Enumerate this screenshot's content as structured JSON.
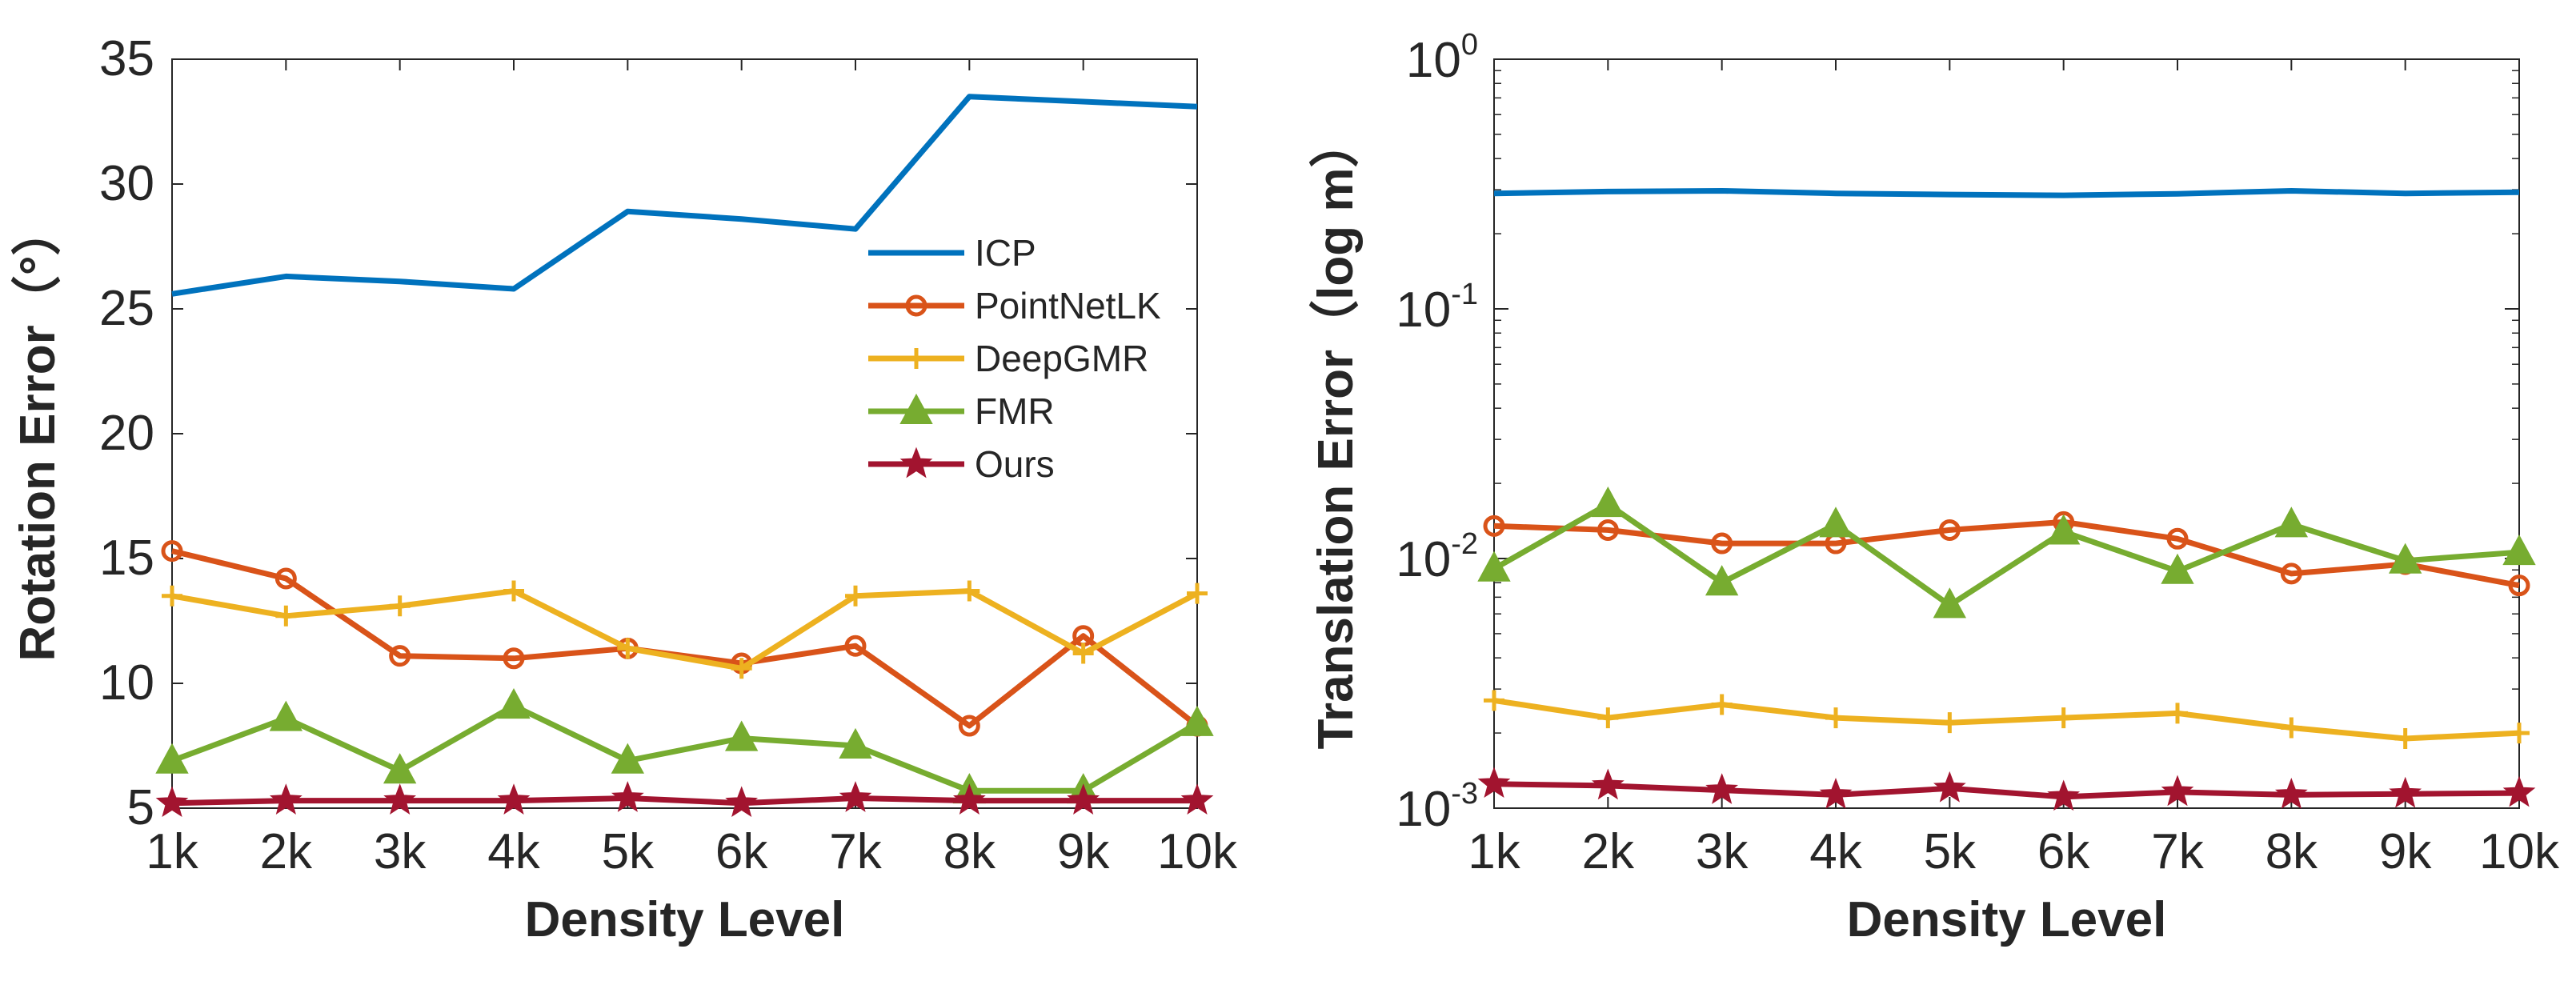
{
  "series_colors": {
    "ICP": "#0072BD",
    "PointNetLK": "#D95319",
    "DeepGMR": "#EDB120",
    "FMR": "#77AC30",
    "Ours": "#A2142F"
  },
  "chart_data": [
    {
      "type": "line",
      "title": "",
      "xlabel": "Density Level",
      "ylabel": "Rotation Error（°）",
      "categories": [
        "1k",
        "2k",
        "3k",
        "4k",
        "5k",
        "6k",
        "7k",
        "8k",
        "9k",
        "10k"
      ],
      "ylim": [
        5,
        35
      ],
      "yticks": [
        "5",
        "10",
        "15",
        "20",
        "25",
        "30",
        "35"
      ],
      "legend_position": "upper-right",
      "series": [
        {
          "name": "ICP",
          "marker": "none",
          "values": [
            25.6,
            26.3,
            26.1,
            25.8,
            28.9,
            28.6,
            28.2,
            33.5,
            33.3,
            33.1
          ]
        },
        {
          "name": "PointNetLK",
          "marker": "circle",
          "values": [
            15.3,
            14.2,
            11.1,
            11.0,
            11.4,
            10.8,
            11.5,
            8.3,
            11.9,
            8.3
          ]
        },
        {
          "name": "DeepGMR",
          "marker": "plus",
          "values": [
            13.5,
            12.7,
            13.1,
            13.7,
            11.4,
            10.6,
            13.5,
            13.7,
            11.2,
            13.6
          ]
        },
        {
          "name": "FMR",
          "marker": "triangle",
          "values": [
            6.9,
            8.6,
            6.5,
            9.1,
            6.9,
            7.8,
            7.5,
            5.7,
            5.7,
            8.4
          ]
        },
        {
          "name": "Ours",
          "marker": "star",
          "values": [
            5.2,
            5.3,
            5.3,
            5.3,
            5.4,
            5.2,
            5.4,
            5.3,
            5.3,
            5.3
          ]
        }
      ]
    },
    {
      "type": "line",
      "title": "",
      "xlabel": "Density Level",
      "ylabel": "Translation Error（log m）",
      "yscale": "log",
      "categories": [
        "1k",
        "2k",
        "3k",
        "4k",
        "5k",
        "6k",
        "7k",
        "8k",
        "9k",
        "10k"
      ],
      "ylim": [
        0.001,
        1
      ],
      "yticks": [
        {
          "base": "10",
          "exp": "-3"
        },
        {
          "base": "10",
          "exp": "-2"
        },
        {
          "base": "10",
          "exp": "-1"
        },
        {
          "base": "10",
          "exp": "0"
        }
      ],
      "series": [
        {
          "name": "ICP",
          "marker": "none",
          "values": [
            0.29,
            0.295,
            0.297,
            0.29,
            0.287,
            0.285,
            0.289,
            0.297,
            0.29,
            0.293
          ]
        },
        {
          "name": "PointNetLK",
          "marker": "circle",
          "values": [
            0.0135,
            0.013,
            0.0115,
            0.0115,
            0.013,
            0.014,
            0.012,
            0.0087,
            0.0095,
            0.0078
          ]
        },
        {
          "name": "DeepGMR",
          "marker": "plus",
          "values": [
            0.0027,
            0.0023,
            0.0026,
            0.0023,
            0.0022,
            0.0023,
            0.0024,
            0.0021,
            0.0019,
            0.002
          ]
        },
        {
          "name": "FMR",
          "marker": "triangle",
          "values": [
            0.0091,
            0.0165,
            0.008,
            0.0137,
            0.0065,
            0.0128,
            0.0089,
            0.0137,
            0.0098,
            0.0106
          ]
        },
        {
          "name": "Ours",
          "marker": "star",
          "values": [
            0.00125,
            0.00123,
            0.00118,
            0.00113,
            0.0012,
            0.00111,
            0.00116,
            0.00113,
            0.00114,
            0.00115
          ]
        }
      ]
    }
  ]
}
